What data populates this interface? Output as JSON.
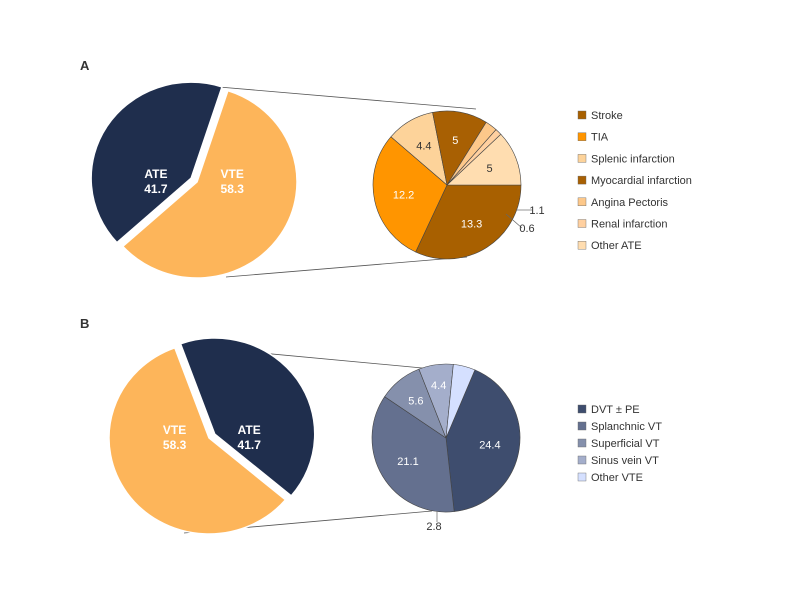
{
  "chart_data": [
    {
      "panel": "A",
      "type": "pie",
      "main": {
        "labels": [
          "VTE",
          "ATE"
        ],
        "values": [
          58.3,
          41.7
        ],
        "colors": [
          "#FDB55A",
          "#1F2E4D"
        ]
      },
      "detail": {
        "labels": [
          "Stroke",
          "TIA",
          "Splenic infarction",
          "Myocardial infarction",
          "Angina Pectoris",
          "Renal infarction",
          "Other ATE"
        ],
        "values": [
          13.3,
          12.2,
          4.4,
          5,
          1.1,
          0.6,
          5
        ],
        "value_labels": [
          "13.3",
          "12.2",
          "4.4",
          "5",
          "1.1",
          "0.6",
          "5"
        ],
        "colors": [
          "#A86000",
          "#FF9500",
          "#FDD39A",
          "#A86003",
          "#FDC88A",
          "#FFD0A0",
          "#FFDDB0"
        ],
        "legend": [
          {
            "label": "Stroke",
            "color": "#A86000"
          },
          {
            "label": "TIA",
            "color": "#FF9500"
          },
          {
            "label": "Splenic infarction",
            "color": "#FDD39A"
          },
          {
            "label": "Myocardial infarction",
            "color": "#A86003"
          },
          {
            "label": "Angina Pectoris",
            "color": "#FDC88A"
          },
          {
            "label": "Renal infarction",
            "color": "#FFD0A0"
          },
          {
            "label": "Other ATE",
            "color": "#FFDDB0"
          }
        ]
      }
    },
    {
      "panel": "B",
      "type": "pie",
      "main": {
        "labels": [
          "ATE",
          "VTE"
        ],
        "values": [
          41.7,
          58.3
        ],
        "colors": [
          "#1F2E4D",
          "#FDB55A"
        ]
      },
      "detail": {
        "labels": [
          "DVT ± PE",
          "Splanchnic VT",
          "Superficial VT",
          "Sinus vein VT",
          "Other VTE"
        ],
        "values": [
          24.4,
          21.1,
          5.6,
          4.4,
          2.8
        ],
        "value_labels": [
          "24.4",
          "21.1",
          "5.6",
          "4.4",
          "2.8"
        ],
        "colors": [
          "#3E4D6E",
          "#64708F",
          "#8590AC",
          "#A4AECB",
          "#D5E0FF"
        ],
        "legend": [
          {
            "label": "DVT ± PE",
            "color": "#3E4D6E"
          },
          {
            "label": "Splanchnic VT",
            "color": "#64708F"
          },
          {
            "label": "Superficial VT",
            "color": "#8590AC"
          },
          {
            "label": "Sinus vein VT",
            "color": "#A4AECB"
          },
          {
            "label": "Other VTE",
            "color": "#D5E0FF"
          }
        ]
      }
    }
  ]
}
